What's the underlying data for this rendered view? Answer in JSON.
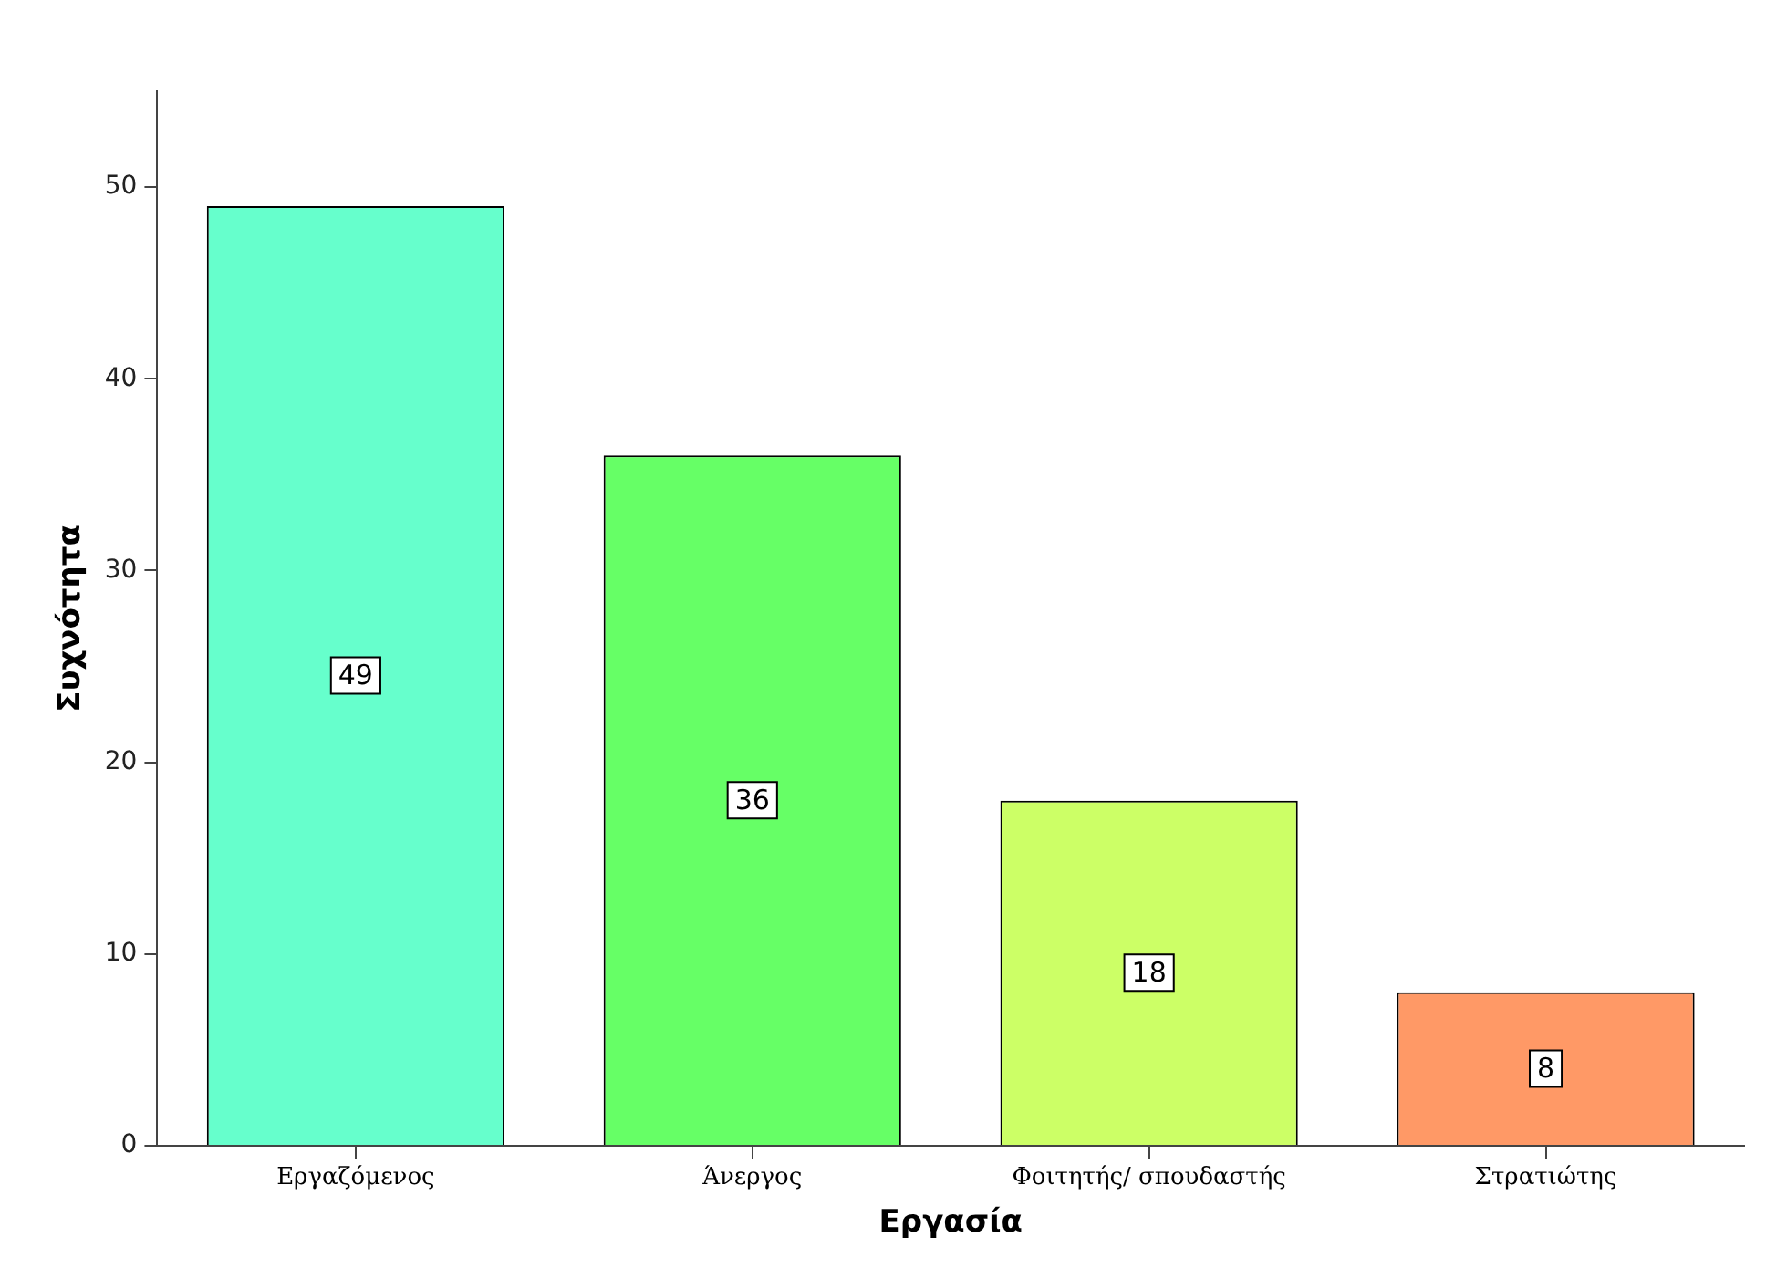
{
  "chart_data": {
    "type": "bar",
    "xlabel": "Εργασία",
    "ylabel": "Συχνότητα",
    "categories": [
      "Εργαζόμενος",
      "Άνεργος",
      "Φοιτητής/ σπουδαστής",
      "Στρατιώτης"
    ],
    "values": [
      49,
      36,
      18,
      8
    ],
    "colors": [
      "#66ffcc",
      "#66ff66",
      "#ccff66",
      "#ff9966"
    ],
    "ylim": [
      0,
      55
    ],
    "yticks": [
      0,
      10,
      20,
      30,
      40,
      50
    ],
    "data_labels": true
  }
}
